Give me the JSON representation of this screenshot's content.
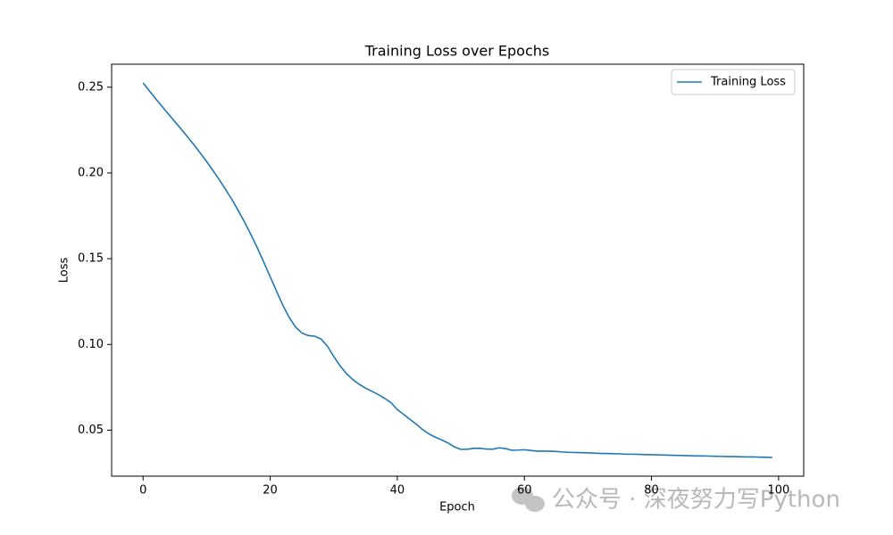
{
  "chart_data": {
    "type": "line",
    "title": "Training Loss over Epochs",
    "xlabel": "Epoch",
    "ylabel": "Loss",
    "x": [
      0,
      1,
      2,
      3,
      4,
      5,
      6,
      7,
      8,
      9,
      10,
      11,
      12,
      13,
      14,
      15,
      16,
      17,
      18,
      19,
      20,
      21,
      22,
      23,
      24,
      25,
      26,
      27,
      28,
      29,
      30,
      31,
      32,
      33,
      34,
      35,
      36,
      37,
      38,
      39,
      40,
      41,
      42,
      43,
      44,
      45,
      46,
      47,
      48,
      49,
      50,
      51,
      52,
      53,
      54,
      55,
      56,
      57,
      58,
      59,
      60,
      61,
      62,
      63,
      64,
      65,
      66,
      67,
      68,
      69,
      70,
      71,
      72,
      73,
      74,
      75,
      76,
      77,
      78,
      79,
      80,
      81,
      82,
      83,
      84,
      85,
      86,
      87,
      88,
      89,
      90,
      91,
      92,
      93,
      94,
      95,
      96,
      97,
      98,
      99
    ],
    "series": [
      {
        "name": "Training Loss",
        "color": "#1f77b4",
        "values": [
          0.2525,
          0.2478,
          0.2432,
          0.2387,
          0.2343,
          0.2299,
          0.2255,
          0.221,
          0.2164,
          0.2116,
          0.2066,
          0.2014,
          0.196,
          0.1903,
          0.1843,
          0.1779,
          0.1711,
          0.1638,
          0.1561,
          0.1479,
          0.1395,
          0.131,
          0.1228,
          0.1157,
          0.1101,
          0.1066,
          0.1052,
          0.1048,
          0.1032,
          0.099,
          0.093,
          0.0875,
          0.083,
          0.0795,
          0.0768,
          0.0745,
          0.0727,
          0.0708,
          0.0686,
          0.0661,
          0.062,
          0.0592,
          0.0563,
          0.0535,
          0.0503,
          0.0478,
          0.0459,
          0.0443,
          0.0425,
          0.0402,
          0.0388,
          0.0389,
          0.0394,
          0.0395,
          0.039,
          0.0389,
          0.0397,
          0.0393,
          0.0383,
          0.0384,
          0.0386,
          0.0382,
          0.0378,
          0.0378,
          0.0377,
          0.0376,
          0.0373,
          0.0371,
          0.037,
          0.0369,
          0.0368,
          0.0366,
          0.0364,
          0.0364,
          0.0363,
          0.0362,
          0.036,
          0.036,
          0.0359,
          0.0358,
          0.0357,
          0.0356,
          0.0355,
          0.0354,
          0.0353,
          0.0352,
          0.0351,
          0.035,
          0.035,
          0.0349,
          0.0348,
          0.0347,
          0.0346,
          0.0346,
          0.0345,
          0.0344,
          0.0344,
          0.0343,
          0.0342,
          0.0341
        ]
      }
    ],
    "xlim": [
      -4.95,
      103.95
    ],
    "xticks": [
      0,
      20,
      40,
      60,
      80,
      100
    ],
    "ylim": [
      0.0232,
      0.2634
    ],
    "yticks": [
      0.05,
      {
        "value": 0.1,
        "label": "0.10"
      },
      0.15,
      {
        "value": 0.2,
        "label": "0.20"
      },
      0.25
    ],
    "legend": "upper right",
    "grid": false,
    "watermark": "公众号 · 深夜努力写Python"
  }
}
